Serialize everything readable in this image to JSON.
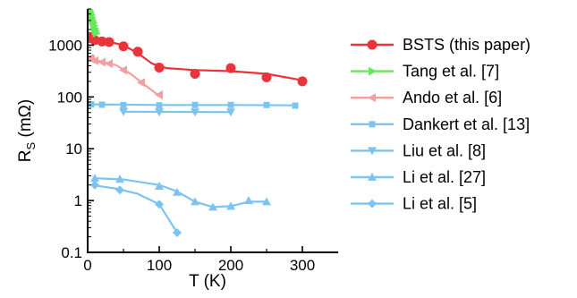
{
  "chart_data": {
    "type": "scatter",
    "xlabel": "T (K)",
    "ylabel": {
      "main": "R",
      "sub": "S",
      "unit": "(mΩ)"
    },
    "xlim": [
      0,
      350
    ],
    "ylim": [
      0.1,
      5000
    ],
    "yscale": "log",
    "x_ticks": [
      0,
      100,
      200,
      300
    ],
    "x_tick_labels": [
      "0",
      "100",
      "200",
      "300"
    ],
    "y_ticks": [
      0.1,
      1,
      10,
      100,
      1000
    ],
    "y_tick_labels": [
      "0.1",
      "1",
      "10",
      "100",
      "1000"
    ],
    "grid": false,
    "legend_position": "right",
    "series": [
      {
        "name": "BSTS (this paper)",
        "color": "#e8343a",
        "marker": "circle",
        "points": [
          [
            2,
            1450
          ],
          [
            5,
            1350
          ],
          [
            10,
            1250
          ],
          [
            20,
            1180
          ],
          [
            30,
            1150
          ],
          [
            50,
            950
          ],
          [
            70,
            750
          ],
          [
            100,
            370
          ],
          [
            150,
            280
          ],
          [
            200,
            360
          ],
          [
            250,
            240
          ],
          [
            300,
            200
          ]
        ],
        "fit": [
          [
            2,
            1400
          ],
          [
            20,
            1250
          ],
          [
            50,
            1000
          ],
          [
            70,
            700
          ],
          [
            90,
            440
          ],
          [
            110,
            360
          ],
          [
            150,
            330
          ],
          [
            200,
            315
          ],
          [
            250,
            280
          ],
          [
            300,
            210
          ]
        ]
      },
      {
        "name": "Tang et al. [7]",
        "color": "#66e85a",
        "marker": "triangle-right",
        "points": [
          [
            2,
            5000
          ],
          [
            3,
            4600
          ],
          [
            4,
            4200
          ],
          [
            5,
            3800
          ],
          [
            6,
            3400
          ],
          [
            7,
            3000
          ],
          [
            8,
            2700
          ],
          [
            9,
            2400
          ],
          [
            10,
            2100
          ],
          [
            11,
            1900
          ],
          [
            12,
            1700
          ]
        ],
        "fit": [
          [
            2,
            5000
          ],
          [
            6,
            3400
          ],
          [
            9,
            2400
          ],
          [
            12,
            1700
          ]
        ]
      },
      {
        "name": "Ando et al. [6]",
        "color": "#f0a0a0",
        "marker": "triangle-left",
        "points": [
          [
            3,
            560
          ],
          [
            5,
            540
          ],
          [
            10,
            500
          ],
          [
            20,
            470
          ],
          [
            30,
            440
          ],
          [
            50,
            330
          ],
          [
            75,
            190
          ],
          [
            100,
            110
          ]
        ],
        "fit": [
          [
            3,
            560
          ],
          [
            20,
            480
          ],
          [
            40,
            410
          ],
          [
            60,
            280
          ],
          [
            80,
            170
          ],
          [
            100,
            105
          ]
        ]
      },
      {
        "name": "Dankert et al. [13]",
        "color": "#7cc4f0",
        "marker": "square",
        "points": [
          [
            5,
            72
          ],
          [
            20,
            71
          ],
          [
            50,
            70
          ],
          [
            100,
            69
          ],
          [
            150,
            70
          ],
          [
            200,
            70
          ],
          [
            250,
            70
          ],
          [
            290,
            68
          ]
        ],
        "fit": [
          [
            5,
            72
          ],
          [
            100,
            70
          ],
          [
            200,
            70
          ],
          [
            290,
            69
          ]
        ]
      },
      {
        "name": "Liu et al. [8]",
        "color": "#7cc4f0",
        "marker": "triangle-down",
        "points": [
          [
            50,
            52
          ],
          [
            100,
            51
          ],
          [
            150,
            51
          ],
          [
            200,
            51
          ]
        ],
        "fit": [
          [
            50,
            52
          ],
          [
            200,
            51
          ]
        ]
      },
      {
        "name": "Li et al. [27]",
        "color": "#7cc4f0",
        "marker": "triangle-up",
        "points": [
          [
            10,
            2.7
          ],
          [
            45,
            2.6
          ],
          [
            100,
            1.9
          ],
          [
            125,
            1.45
          ],
          [
            150,
            0.95
          ],
          [
            175,
            0.75
          ],
          [
            200,
            0.78
          ],
          [
            225,
            1.0
          ],
          [
            250,
            0.95
          ]
        ],
        "fit": [
          [
            10,
            2.7
          ],
          [
            50,
            2.55
          ],
          [
            100,
            2.0
          ],
          [
            125,
            1.5
          ],
          [
            150,
            0.95
          ],
          [
            175,
            0.75
          ],
          [
            200,
            0.78
          ],
          [
            225,
            0.95
          ],
          [
            250,
            0.95
          ]
        ]
      },
      {
        "name": "Li et al. [5]",
        "color": "#7cc4f0",
        "marker": "diamond",
        "points": [
          [
            10,
            2.0
          ],
          [
            45,
            1.6
          ],
          [
            100,
            0.85
          ],
          [
            125,
            0.24
          ]
        ],
        "fit": [
          [
            5,
            2.0
          ],
          [
            40,
            1.7
          ],
          [
            70,
            1.35
          ],
          [
            100,
            0.85
          ],
          [
            125,
            0.24
          ]
        ]
      }
    ]
  }
}
